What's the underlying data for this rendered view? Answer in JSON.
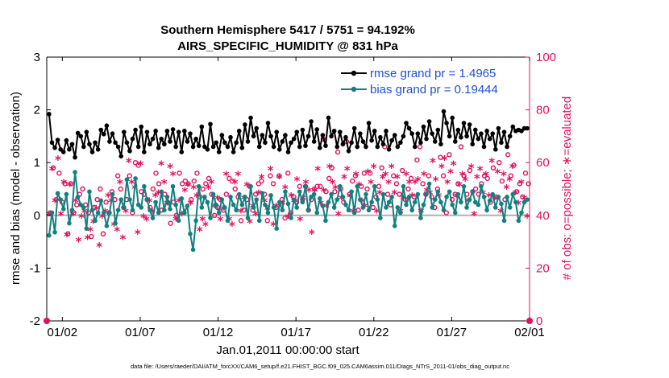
{
  "chart_data": {
    "type": "line",
    "title": "Southern Hemisphere 5417 / 5751 = 94.192%",
    "subtitle": "AIRS_SPECIFIC_HUMIDITY @ 831 hPa",
    "xlabel": "Jan.01,2011 00:00:00 start",
    "ylabel_left": "rmse and bias (model - observation)",
    "ylabel_right": "# of obs: o=possible; ∗=evaluated",
    "footer": "data file: /Users/raeder/DAI/ATM_forcXX/CAM6_setup/f.e21.FHIST_BGC.f09_025.CAM6assim.011/Diags_NTrS_2011-01/obs_diag_output.nc",
    "x_range": [
      0,
      31
    ],
    "x_ticks": [
      {
        "value": 1,
        "label": "01/02"
      },
      {
        "value": 6,
        "label": "01/07"
      },
      {
        "value": 11,
        "label": "01/12"
      },
      {
        "value": 16,
        "label": "01/17"
      },
      {
        "value": 21,
        "label": "01/22"
      },
      {
        "value": 26,
        "label": "01/27"
      },
      {
        "value": 31,
        "label": "02/01"
      }
    ],
    "ylim_left": [
      -2,
      3
    ],
    "yticks_left": [
      -2,
      -1,
      0,
      1,
      2,
      3
    ],
    "ylim_right": [
      0,
      100
    ],
    "yticks_right": [
      0,
      20,
      40,
      60,
      80,
      100
    ],
    "colors": {
      "rmse": "#000000",
      "bias": "#128080",
      "obs": "#e0115f",
      "legend_text": "#1f4fd6",
      "zero_line": "#b0b0b0"
    },
    "series": [
      {
        "name": "rmse",
        "legend": "rmse grand pr = 1.4965",
        "axis": "left",
        "values": [
          1.92,
          1.38,
          1.28,
          1.43,
          1.25,
          1.2,
          1.42,
          1.25,
          1.35,
          1.1,
          1.56,
          1.5,
          1.3,
          1.58,
          1.35,
          1.2,
          1.38,
          1.25,
          1.62,
          1.54,
          1.7,
          1.4,
          1.55,
          1.38,
          1.3,
          1.12,
          1.58,
          1.38,
          1.22,
          1.45,
          1.62,
          1.3,
          1.68,
          1.2,
          1.58,
          1.35,
          1.45,
          1.6,
          1.28,
          1.45,
          1.35,
          1.6,
          1.4,
          1.63,
          1.3,
          1.58,
          1.2,
          1.6,
          1.4,
          1.55,
          1.3,
          1.45,
          1.32,
          1.68,
          1.3,
          1.25,
          1.73,
          1.3,
          1.38,
          1.2,
          1.52,
          1.38,
          1.3,
          1.48,
          1.2,
          1.38,
          1.6,
          1.28,
          1.72,
          1.4,
          1.85,
          1.5,
          1.65,
          1.3,
          1.52,
          1.38,
          1.75,
          1.5,
          1.3,
          1.58,
          1.25,
          1.4,
          1.52,
          1.2,
          1.38,
          1.45,
          1.58,
          1.3,
          1.62,
          1.32,
          1.5,
          1.78,
          1.4,
          1.63,
          1.28,
          1.52,
          1.32,
          1.85,
          1.5,
          1.6,
          1.3,
          1.58,
          1.35,
          1.48,
          1.22,
          1.38,
          1.65,
          1.3,
          1.55,
          1.4,
          1.3,
          1.75,
          1.42,
          1.6,
          1.3,
          1.48,
          1.35,
          1.6,
          1.25,
          1.42,
          1.52,
          1.3,
          1.38,
          1.5,
          1.75,
          1.65,
          1.55,
          1.3,
          1.55,
          1.38,
          1.68,
          1.45,
          1.78,
          1.55,
          1.4,
          1.62,
          1.35,
          1.97,
          1.75,
          1.5,
          1.85,
          1.4,
          1.62,
          1.48,
          1.75,
          1.5,
          1.72,
          1.35,
          1.62,
          1.45,
          1.55,
          1.3,
          1.6,
          1.45,
          1.55,
          1.25,
          1.65,
          1.38,
          1.58,
          1.3,
          1.5,
          1.68,
          1.6,
          1.62,
          1.6,
          1.65,
          1.65
        ]
      },
      {
        "name": "bias",
        "legend": "bias grand pr = 0.19444",
        "axis": "left",
        "values": [
          -0.38,
          0.05,
          -0.32,
          0.42,
          0.3,
          0.12,
          0.4,
          -0.15,
          0.1,
          0.82,
          0.35,
          0.2,
          0.15,
          -0.25,
          0.45,
          0.1,
          -0.1,
          0.05,
          0.28,
          0.05,
          -0.2,
          0.05,
          0.4,
          -0.15,
          0.1,
          0.3,
          0.15,
          0.68,
          0.3,
          0.1,
          0.7,
          0.2,
          0.15,
          0.55,
          0.3,
          0.1,
          -0.05,
          0.25,
          0.05,
          0.45,
          0.1,
          0.35,
          0.12,
          0.55,
          0.2,
          -0.1,
          0.32,
          0.05,
          0.18,
          -0.35,
          -0.65,
          -0.1,
          0.55,
          0.15,
          0.35,
          0.25,
          -0.05,
          0.4,
          0.2,
          0.05,
          0.3,
          0.15,
          -0.1,
          0.35,
          0.2,
          0.1,
          0.4,
          0.2,
          0.35,
          -0.05,
          0.55,
          0.15,
          0.3,
          -0.1,
          0.42,
          0.2,
          0.05,
          0.38,
          0.15,
          -0.25,
          0.25,
          0.1,
          0.45,
          0.22,
          -0.05,
          0.3,
          0.15,
          0.45,
          0.25,
          0.55,
          0.1,
          0.35,
          0.4,
          0.05,
          0.32,
          0.18,
          -0.1,
          0.25,
          0.4,
          0.15,
          0.3,
          0.55,
          0.35,
          0.2,
          0.1,
          0.45,
          0.05,
          0.55,
          0.3,
          0.15,
          0.4,
          0.1,
          0.25,
          0.55,
          0.3,
          -0.05,
          0.4,
          0.15,
          0.25,
          0.35,
          -0.2,
          0.15,
          0.05,
          0.55,
          0.2,
          0.35,
          0.1,
          0.25,
          0.4,
          -0.05,
          0.2,
          0.4,
          0.6,
          0.15,
          0.3,
          0.45,
          0.25,
          0.1,
          0.35,
          0.45,
          0.2,
          0.05,
          0.4,
          0.25,
          0.55,
          0.15,
          0.3,
          0.45,
          0.25,
          0.2,
          0.55,
          0.35,
          0.1,
          0.28,
          0.4,
          0.15,
          0.35,
          0.22,
          -0.1,
          0.35,
          0.15,
          0.4,
          0.25,
          -0.1,
          0.05,
          0.25,
          0.3
        ]
      },
      {
        "name": "obs_possible",
        "axis": "right",
        "marker": "circle",
        "values": [
          41,
          58,
          46,
          56,
          45,
          52,
          33,
          52,
          41,
          44,
          48,
          50,
          44,
          41,
          32,
          43,
          46,
          50,
          33,
          45,
          41,
          49,
          46,
          55,
          50,
          43,
          46,
          55,
          41,
          60,
          59,
          49,
          48,
          46,
          43,
          50,
          56,
          52,
          42,
          48,
          45,
          37,
          45,
          40,
          56,
          52,
          53,
          52,
          46,
          53,
          56,
          47,
          50,
          52,
          54,
          48,
          40,
          43,
          46,
          42,
          48,
          54,
          53,
          50,
          47,
          38,
          42,
          46,
          51,
          42,
          48,
          52,
          53,
          48,
          38,
          55,
          52,
          43,
          55,
          46,
          39,
          56,
          41,
          47,
          45,
          51,
          46,
          51,
          42,
          46,
          50,
          51,
          51,
          69,
          49,
          54,
          58,
          49,
          64,
          50,
          45,
          68,
          48,
          53,
          55,
          42,
          51,
          56,
          50,
          56,
          43,
          47,
          51,
          58,
          66,
          48,
          44,
          55,
          52,
          48,
          57,
          46,
          50,
          54,
          47,
          61,
          66,
          52,
          48,
          55,
          47,
          43,
          50,
          62,
          55,
          41,
          63,
          46,
          48,
          52,
          66,
          55,
          48,
          57,
          49,
          50,
          48,
          52,
          55,
          54,
          45,
          58,
          47,
          60,
          53,
          46,
          63,
          55,
          59,
          49,
          52,
          47,
          56,
          52
        ]
      },
      {
        "name": "obs_evaluated",
        "axis": "right",
        "marker": "asterisk",
        "values": [
          40,
          57,
          45,
          61,
          40,
          52,
          32,
          51,
          40,
          45,
          30,
          39,
          41,
          31,
          34,
          37,
          42,
          28,
          39,
          41,
          47,
          45,
          36,
          34,
          52,
          31,
          41,
          60,
          52,
          50,
          33,
          59,
          39,
          38,
          45,
          41,
          47,
          48,
          59,
          52,
          44,
          58,
          55,
          38,
          45,
          40,
          49,
          51,
          44,
          50,
          47,
          34,
          38,
          36,
          50,
          52,
          43,
          46,
          38,
          42,
          55,
          38,
          36,
          52,
          55,
          41,
          46,
          51,
          37,
          43,
          40,
          48,
          54,
          45,
          42,
          57,
          36,
          43,
          54,
          44,
          50,
          39,
          47,
          45,
          53,
          38,
          46,
          52,
          49,
          33,
          49,
          57,
          44,
          49,
          43,
          58,
          52,
          50,
          40,
          46,
          54,
          57,
          47,
          41,
          55,
          51,
          45,
          43,
          56,
          52,
          58,
          41,
          48,
          54,
          55,
          52,
          58,
          48,
          54,
          41,
          46,
          55,
          52,
          47,
          52,
          53,
          41,
          55,
          49,
          48,
          60,
          53,
          47,
          58,
          61,
          52,
          56,
          59,
          47,
          51,
          55,
          53,
          45,
          58,
          40,
          54,
          57,
          48,
          55,
          47,
          60,
          46,
          56,
          41,
          55,
          50,
          53,
          58,
          48,
          44,
          52,
          46,
          39
        ]
      }
    ]
  }
}
